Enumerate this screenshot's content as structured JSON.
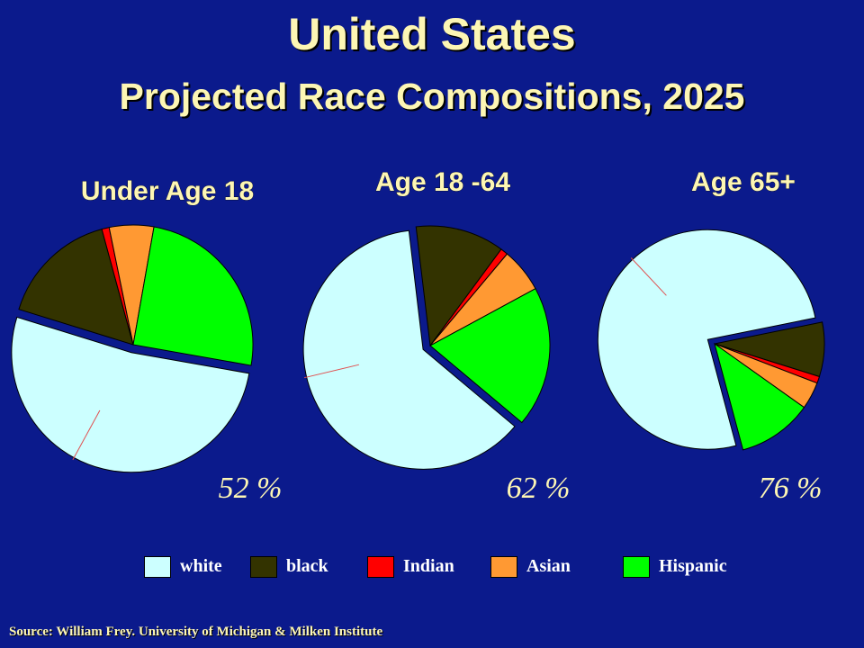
{
  "title": "United States",
  "subtitle": "Projected Race Compositions, 2025",
  "source": "Source: William Frey. University of Michigan & Milken Institute",
  "colors": {
    "background": "#0b1a8c",
    "title": "#fdf6b4",
    "white": "#ccffff",
    "black": "#333300",
    "Indian": "#ff0000",
    "Asian": "#ff9933",
    "Hispanic": "#00ff00"
  },
  "legend": [
    {
      "key": "white",
      "label": "white"
    },
    {
      "key": "black",
      "label": "black"
    },
    {
      "key": "Indian",
      "label": "Indian"
    },
    {
      "key": "Asian",
      "label": "Asian"
    },
    {
      "key": "Hispanic",
      "label": "Hispanic"
    }
  ],
  "chart_data": [
    {
      "type": "pie",
      "title": "Under Age 18",
      "categories": [
        "white",
        "black",
        "Indian",
        "Asian",
        "Hispanic"
      ],
      "values": [
        52,
        16,
        1,
        6,
        25
      ],
      "annotation": "52 %",
      "exploded": "white"
    },
    {
      "type": "pie",
      "title": "Age 18 -64",
      "categories": [
        "white",
        "black",
        "Indian",
        "Asian",
        "Hispanic"
      ],
      "values": [
        62,
        12,
        1,
        6,
        19
      ],
      "annotation": "62 %",
      "exploded": "white"
    },
    {
      "type": "pie",
      "title": "Age 65+",
      "categories": [
        "white",
        "black",
        "Indian",
        "Asian",
        "Hispanic"
      ],
      "values": [
        76,
        8,
        1,
        4,
        11
      ],
      "annotation": "76 %",
      "exploded": "white"
    }
  ]
}
